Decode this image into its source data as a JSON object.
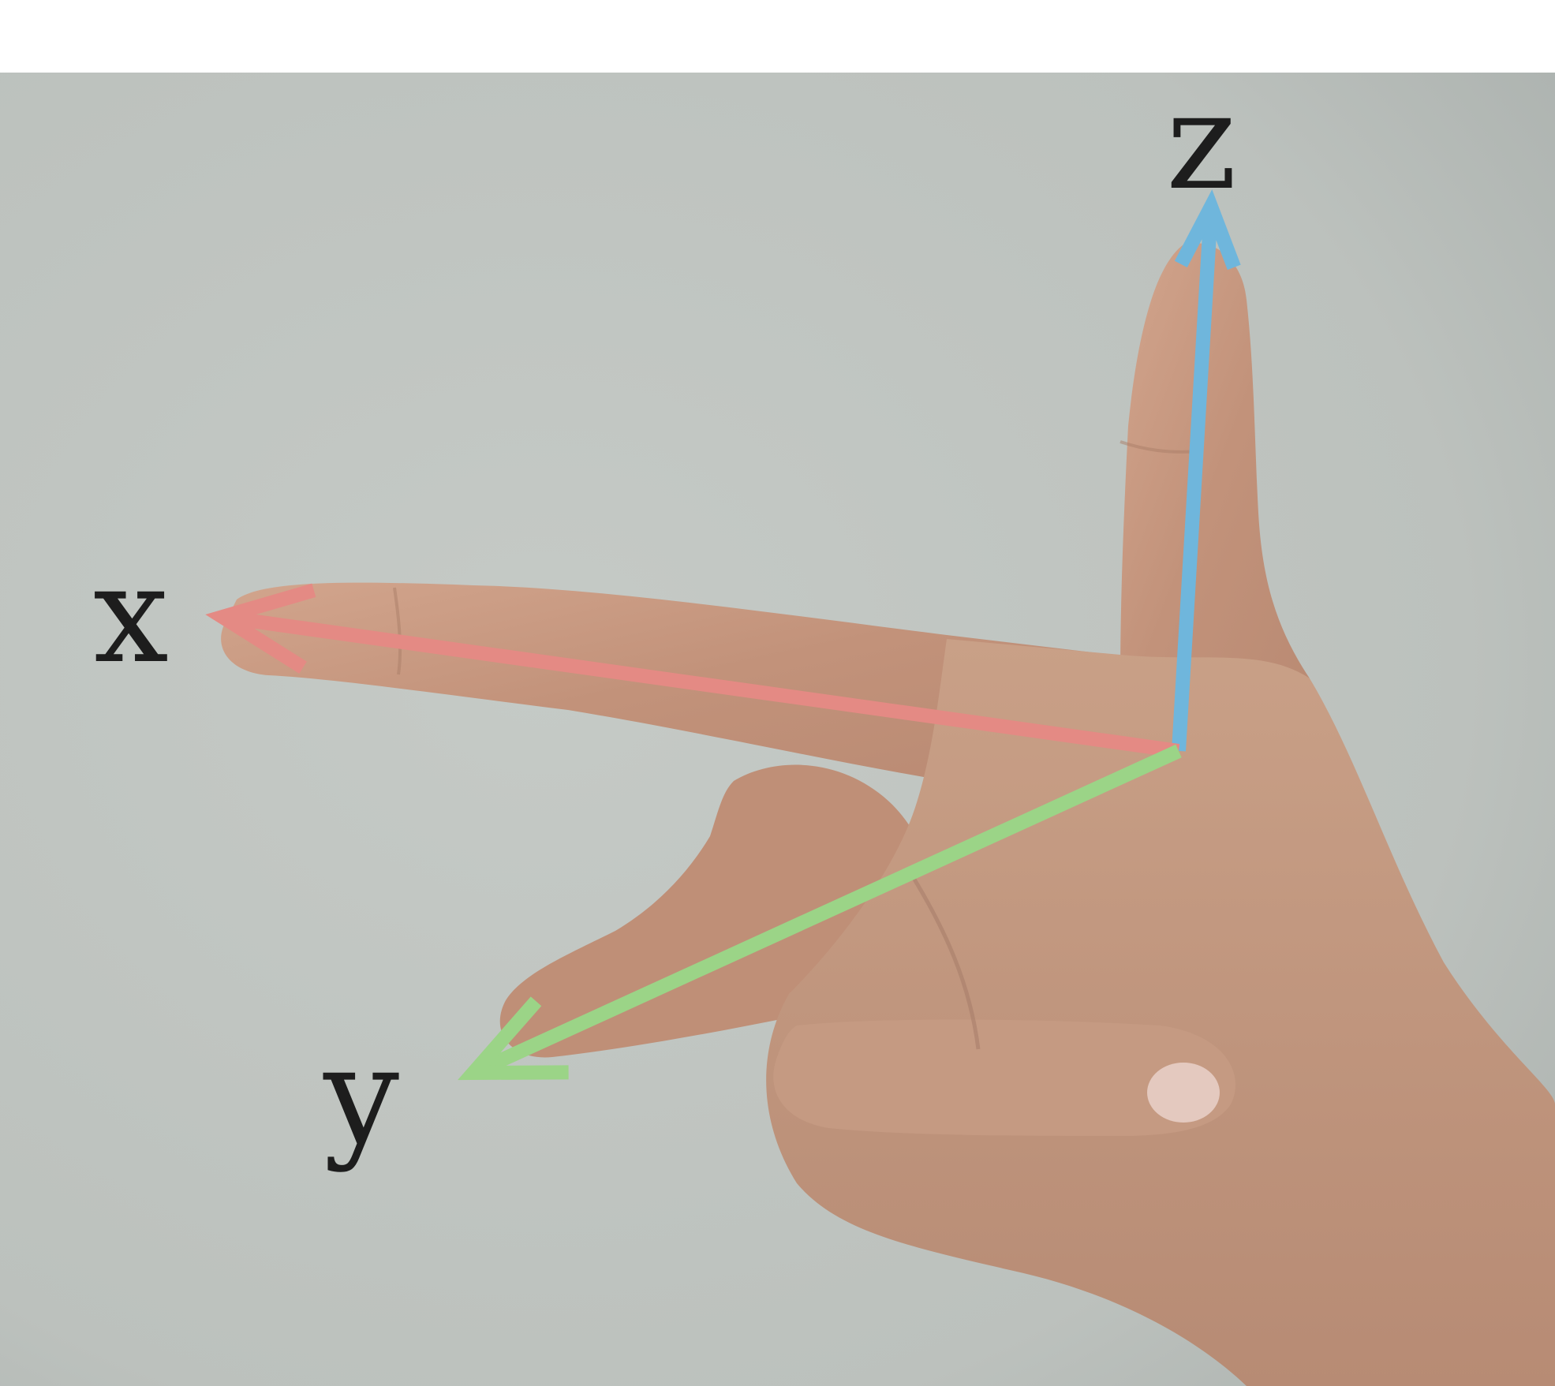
{
  "axes": {
    "x": {
      "label": "x",
      "color": "#e48a84"
    },
    "y": {
      "label": "y",
      "color": "#9bd487"
    },
    "z": {
      "label": "z",
      "color": "#6fb6dc"
    }
  },
  "background": {
    "wall": "#bfc4c0",
    "skin": "#c89a82",
    "margin": "#ffffff"
  }
}
